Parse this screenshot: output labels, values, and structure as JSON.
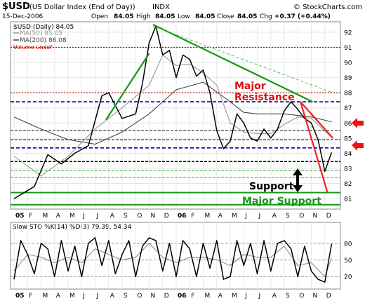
{
  "header": {
    "symbol": "$USD",
    "description": "(US Dollar Index (End of Day))",
    "exchange": "INDX",
    "source": "© StockCharts.com",
    "date": "15-Dec-2006",
    "open_label": "Open",
    "open": "84.05",
    "high_label": "High",
    "high": "84.05",
    "low_label": "Low",
    "low": "84.05",
    "close_label": "Close",
    "close": "84.05",
    "chg_label": "Chg",
    "chg": "+0.37 (+0.44%)"
  },
  "legend": {
    "main": "$USD (Daily) 84.05",
    "ma50": "MA(50) 85.05",
    "ma200": "MA(200) 86.08",
    "volume": "Volume undef"
  },
  "annotations": {
    "major_resistance": "Major Resistance",
    "support": "Support",
    "major_support": "Major Support"
  },
  "lower_panel": {
    "label": "Slow STO %K(14) %D(3) 79.39, 54.34"
  },
  "colors": {
    "price": "#000000",
    "ma50": "#999999",
    "ma200": "#444444",
    "green_trend": "#119911",
    "red_trend": "#ee2222",
    "blue_dash": "#0000aa",
    "red_dot": "#cc0000",
    "arrow": "#ee1111"
  },
  "chart_data": [
    {
      "type": "line",
      "title": "$USD (Daily) 84.05",
      "y_ticks": [
        81,
        82,
        83,
        84,
        85,
        86,
        87,
        88,
        89,
        90,
        91,
        92
      ],
      "ylim": [
        80.4,
        92.6
      ],
      "x_ticks": [
        "05",
        "F",
        "M",
        "A",
        "M",
        "J",
        "J",
        "A",
        "S",
        "O",
        "N",
        "D",
        "06",
        "F",
        "M",
        "A",
        "M",
        "J",
        "J",
        "A",
        "S",
        "O",
        "N",
        "D"
      ],
      "series": [
        {
          "name": "$USD",
          "x": [
            0,
            1.5,
            2.5,
            3.5,
            4.5,
            5.5,
            6.5,
            7,
            8,
            9,
            9.5,
            10,
            10.5,
            11,
            11.5,
            12,
            12.5,
            13,
            13.5,
            14,
            14.5,
            15,
            15.5,
            16,
            16.5,
            17,
            17.5,
            18,
            18.5,
            19,
            19.5,
            20,
            20.5,
            21,
            21.5,
            22,
            22.5,
            23,
            23.5
          ],
          "values": [
            81.0,
            81.8,
            83.9,
            83.3,
            84.0,
            84.5,
            87.8,
            88.0,
            86.3,
            86.6,
            88.6,
            91.3,
            92.4,
            90.5,
            90.8,
            89.0,
            90.5,
            90.2,
            89.1,
            89.5,
            88.0,
            85.5,
            84.3,
            84.8,
            86.6,
            86.0,
            85.0,
            84.8,
            85.6,
            85.0,
            85.6,
            86.8,
            87.4,
            86.9,
            86.3,
            86.0,
            84.9,
            82.8,
            84.05
          ]
        },
        {
          "name": "MA(50)",
          "x": [
            0,
            2,
            4,
            6,
            8,
            10,
            11,
            12,
            13,
            14,
            15,
            16,
            17,
            18,
            19,
            20,
            21,
            22,
            23.5
          ],
          "values": [
            83.8,
            82.5,
            83.8,
            85.6,
            87.0,
            88.5,
            90.5,
            89.8,
            89.9,
            89.3,
            88.5,
            86.0,
            85.4,
            85.3,
            85.3,
            85.9,
            86.4,
            86.3,
            85.05
          ]
        },
        {
          "name": "MA(200)",
          "x": [
            0,
            2,
            4,
            6,
            8,
            10,
            12,
            14,
            16,
            17,
            18,
            20,
            22,
            23.5
          ],
          "values": [
            86.4,
            85.6,
            84.9,
            84.6,
            85.4,
            86.6,
            88.2,
            88.7,
            87.4,
            86.7,
            86.6,
            86.6,
            86.4,
            86.08
          ]
        }
      ],
      "trend_lines": [
        {
          "color": "green",
          "from": [
            10.3,
            92.5
          ],
          "to": [
            22.1,
            87.4
          ]
        },
        {
          "color": "green-dashed",
          "from": [
            10.3,
            92.4
          ],
          "to": [
            23.6,
            88.0
          ]
        },
        {
          "color": "green",
          "from": [
            6.8,
            86.2
          ],
          "to": [
            10.0,
            90.6
          ]
        },
        {
          "color": "red",
          "from": [
            21.2,
            87.4
          ],
          "to": [
            23.2,
            81.4
          ]
        },
        {
          "color": "red",
          "from": [
            21.2,
            87.4
          ],
          "to": [
            23.6,
            85.0
          ]
        }
      ],
      "horizontal_lines": [
        {
          "y": 91.0,
          "style": "red-dotted"
        },
        {
          "y": 88.0,
          "style": "red-dotted"
        },
        {
          "y": 87.4,
          "style": "blue-dashed"
        },
        {
          "y": 85.5,
          "style": "dark-dashed"
        },
        {
          "y": 84.9,
          "style": "dark-dashed"
        },
        {
          "y": 84.35,
          "style": "blue-dashed"
        },
        {
          "y": 83.45,
          "style": "black-dashed"
        },
        {
          "y": 82.85,
          "style": "green-dashed"
        },
        {
          "y": 82.4,
          "style": "green-dashed"
        },
        {
          "y": 81.4,
          "style": "green-solid"
        },
        {
          "y": 80.6,
          "style": "green-solid"
        }
      ],
      "arrow_levels": [
        85.8,
        84.7
      ]
    },
    {
      "type": "line",
      "title": "Slow STO %K(14) %D(3) 79.39, 54.34",
      "y_ticks": [
        20,
        50,
        80
      ],
      "ylim": [
        0,
        100
      ],
      "x_ticks": [
        "05",
        "F",
        "M",
        "A",
        "M",
        "J",
        "J",
        "A",
        "S",
        "O",
        "N",
        "D",
        "06",
        "F",
        "M",
        "A",
        "M",
        "J",
        "J",
        "A",
        "S",
        "O",
        "N",
        "D"
      ],
      "series": [
        {
          "name": "%K",
          "x": [
            0,
            0.5,
            1,
            1.5,
            2,
            2.5,
            3,
            3.5,
            4,
            4.5,
            5,
            5.5,
            6,
            6.5,
            7,
            7.5,
            8,
            8.5,
            9,
            9.5,
            10,
            10.5,
            11,
            11.5,
            12,
            12.5,
            13,
            13.5,
            14,
            14.5,
            15,
            15.5,
            16,
            16.5,
            17,
            17.5,
            18,
            18.5,
            19,
            19.5,
            20,
            20.5,
            21,
            21.5,
            22,
            22.5,
            23,
            23.5
          ],
          "values": [
            15,
            85,
            60,
            25,
            80,
            70,
            20,
            85,
            30,
            75,
            20,
            80,
            90,
            40,
            85,
            25,
            60,
            85,
            20,
            75,
            90,
            85,
            30,
            80,
            20,
            85,
            70,
            20,
            80,
            35,
            85,
            15,
            20,
            85,
            40,
            80,
            25,
            85,
            30,
            80,
            85,
            70,
            20,
            75,
            30,
            15,
            10,
            79
          ]
        },
        {
          "name": "%D",
          "x": [
            0,
            1,
            2,
            3,
            4,
            5,
            6,
            7,
            8,
            9,
            10,
            11,
            12,
            13,
            14,
            15,
            16,
            17,
            18,
            19,
            20,
            21,
            22,
            23,
            23.5
          ],
          "values": [
            30,
            60,
            55,
            45,
            55,
            45,
            70,
            60,
            50,
            55,
            80,
            55,
            45,
            55,
            55,
            50,
            40,
            60,
            55,
            55,
            75,
            40,
            45,
            20,
            54
          ]
        }
      ]
    }
  ]
}
